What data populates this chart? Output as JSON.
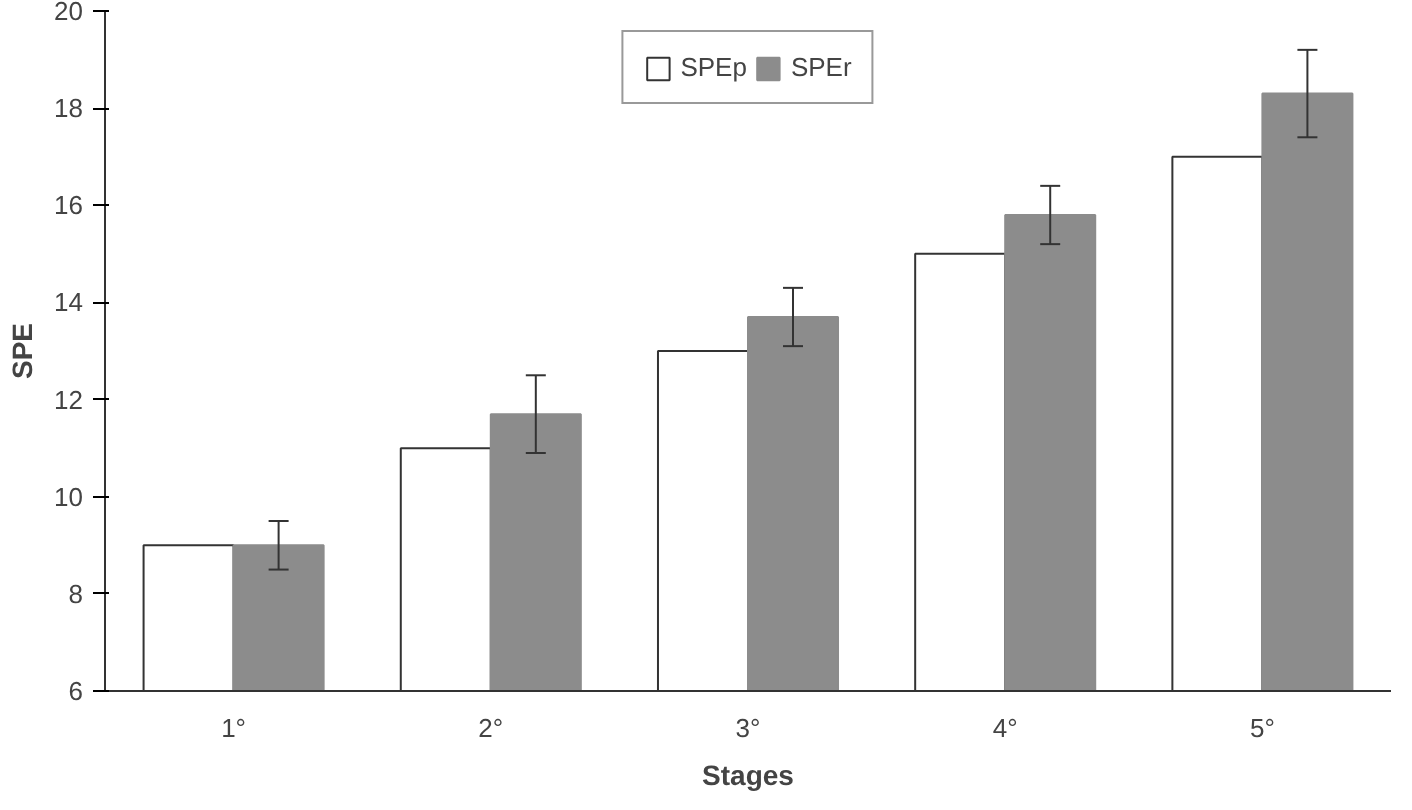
{
  "chart_data": {
    "type": "bar",
    "xlabel": "Stages",
    "ylabel": "SPE",
    "categories": [
      "1°",
      "2°",
      "3°",
      "4°",
      "5°"
    ],
    "series": [
      {
        "name": "SPEp",
        "color": "#ffffff",
        "values": [
          9,
          11,
          13,
          15,
          17
        ]
      },
      {
        "name": "SPEr",
        "color": "#8c8c8c",
        "values": [
          9,
          11.7,
          13.7,
          15.8,
          18.3
        ],
        "errors": [
          0.5,
          0.8,
          0.6,
          0.6,
          0.9
        ]
      }
    ],
    "ylim": [
      6,
      20
    ],
    "yticks": [
      6,
      8,
      10,
      12,
      14,
      16,
      18,
      20
    ],
    "grid": false,
    "legend": "top"
  }
}
